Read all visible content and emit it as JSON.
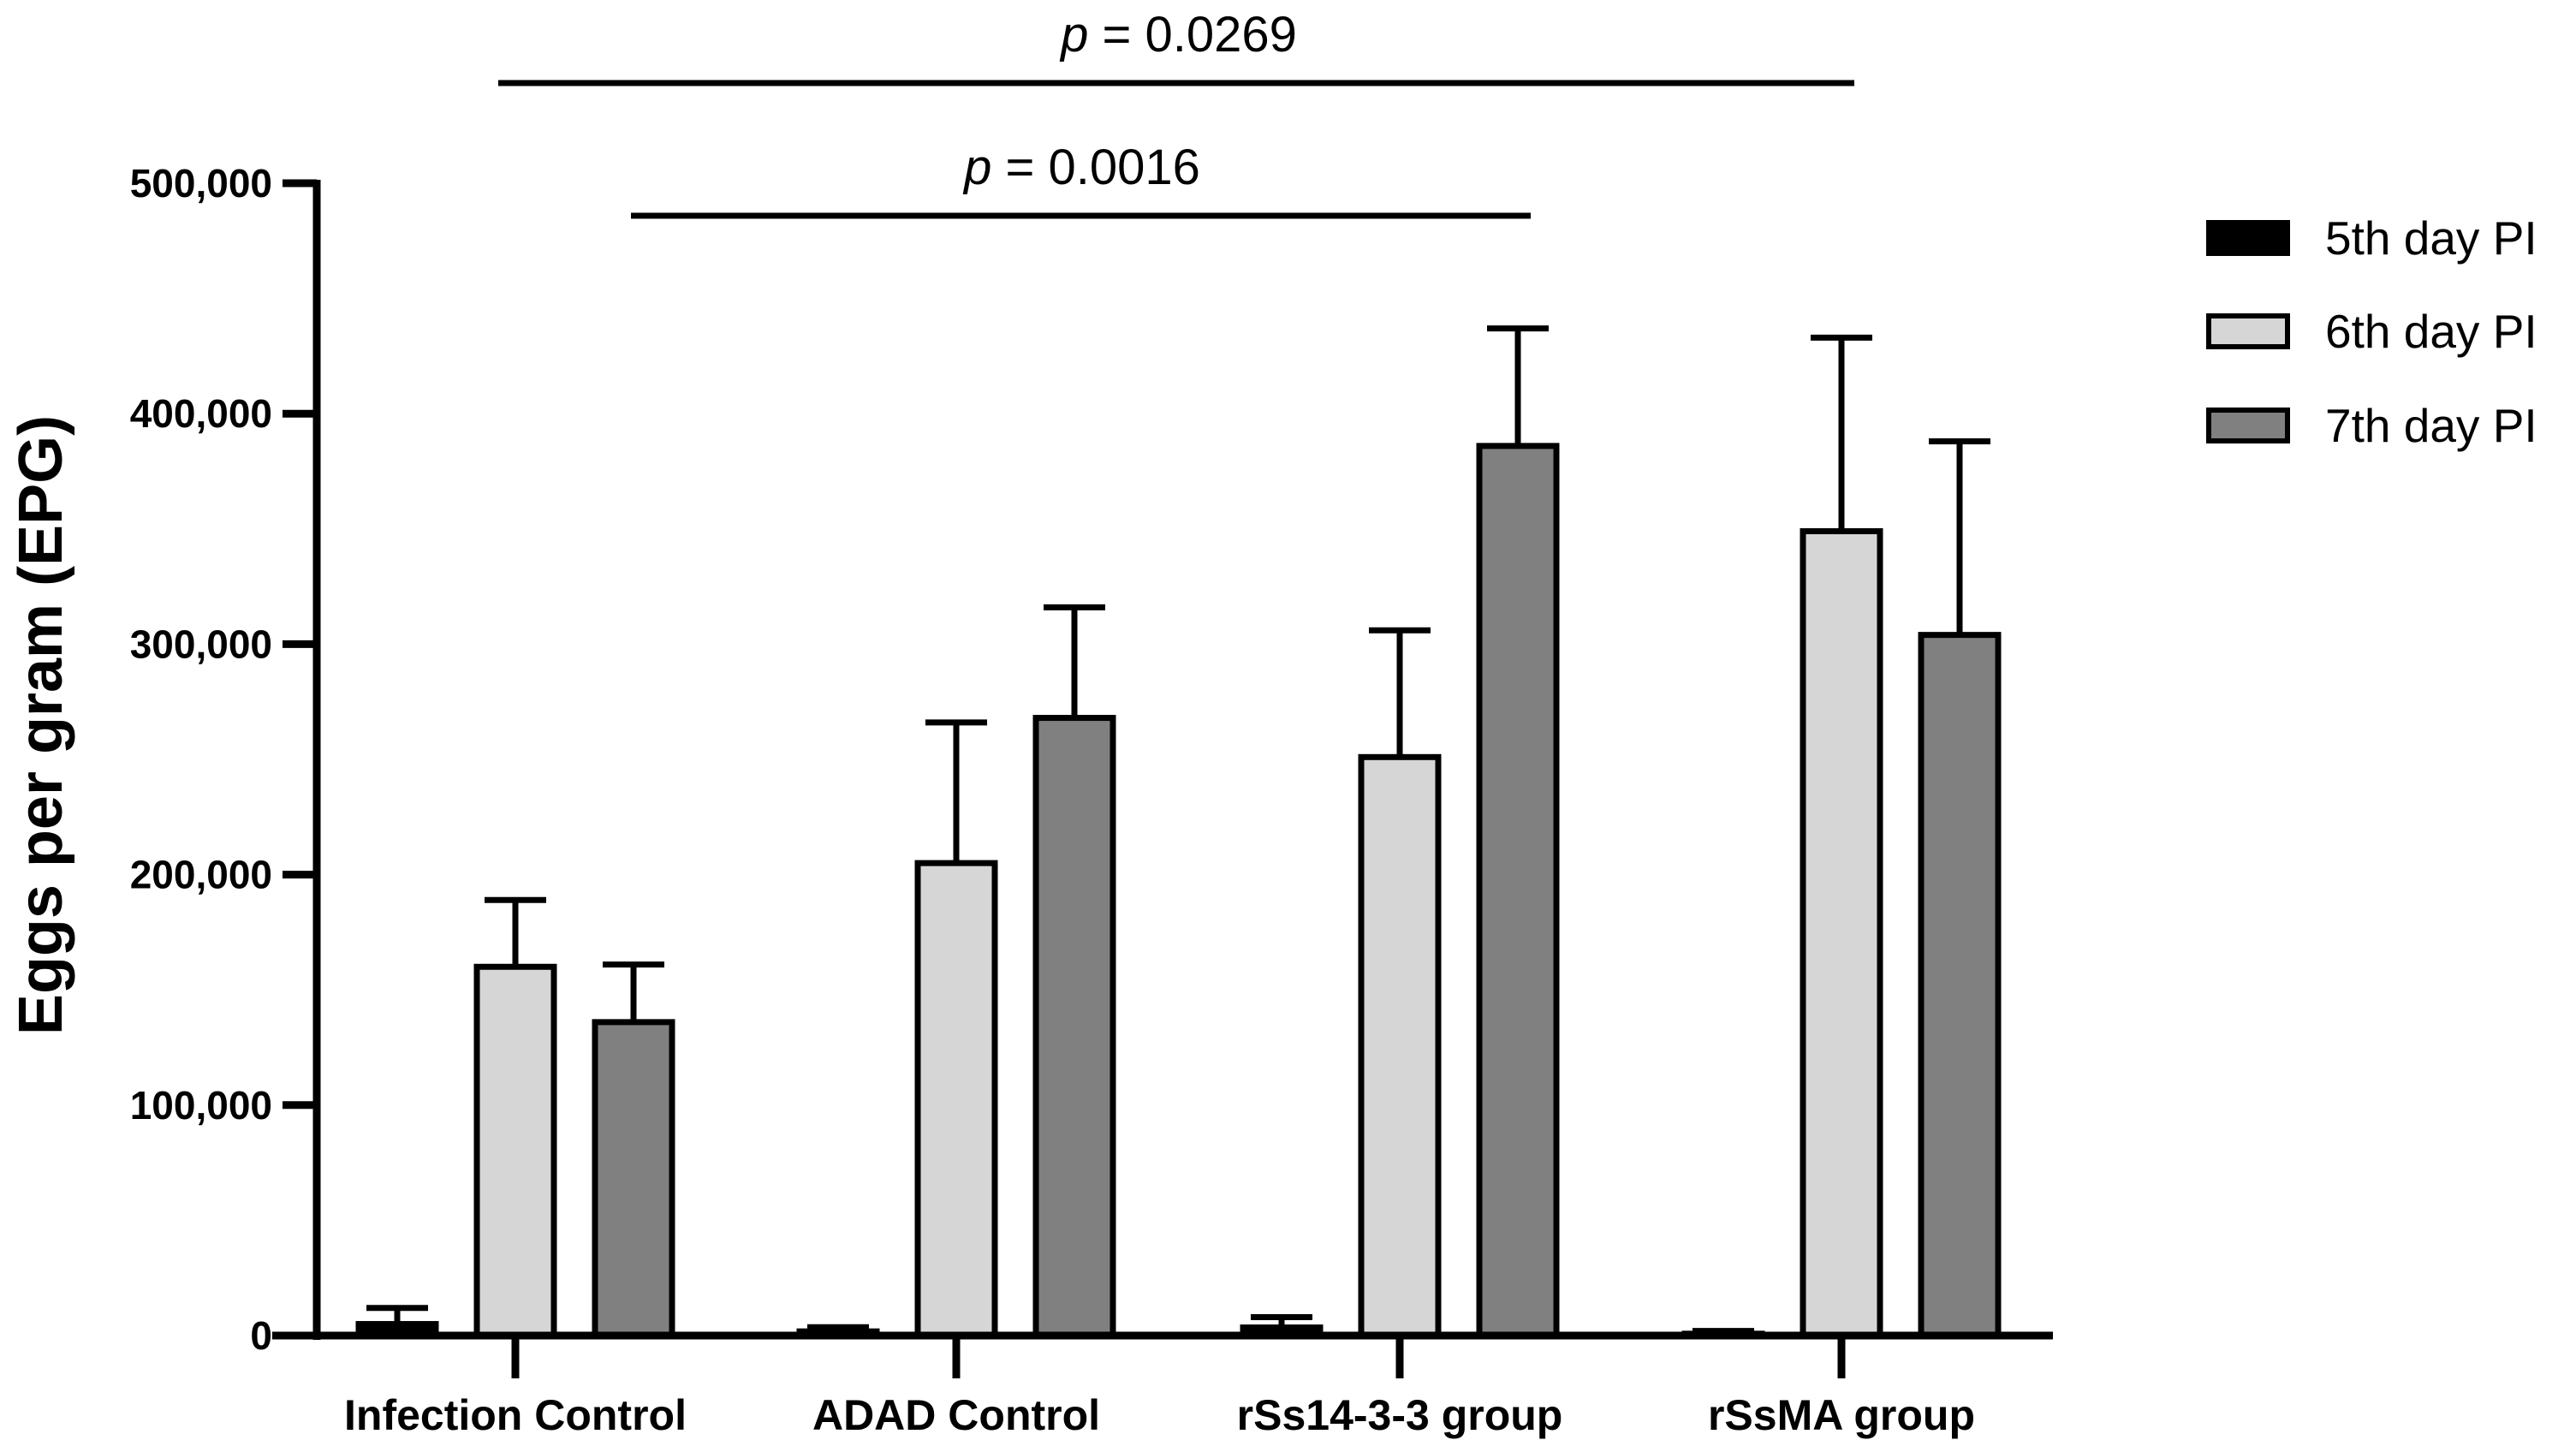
{
  "chart_data": {
    "type": "bar",
    "title": "",
    "xlabel": "",
    "ylabel": "Eggs per gram (EPG)",
    "ylim": [
      0,
      500000
    ],
    "yticks": [
      0,
      100000,
      200000,
      300000,
      400000,
      500000
    ],
    "ytick_labels": [
      "0",
      "100,000",
      "200,000",
      "300,000",
      "400,000",
      "500,000"
    ],
    "categories": [
      "Infection Control",
      "ADAD Control",
      "rSs14-3-3 group",
      "rSsMA group"
    ],
    "series": [
      {
        "name": "5th day PI",
        "color": "#000000",
        "values": [
          5000,
          1800,
          3500,
          800
        ],
        "errors": [
          7000,
          1800,
          4500,
          1200
        ]
      },
      {
        "name": "6th day PI",
        "color": "#d6d6d6",
        "values": [
          160000,
          205000,
          251000,
          349000
        ],
        "errors": [
          29000,
          61000,
          55000,
          84000
        ]
      },
      {
        "name": "7th day PI",
        "color": "#808080",
        "values": [
          136000,
          268000,
          386000,
          304000
        ],
        "errors": [
          25000,
          48000,
          51000,
          84000
        ]
      }
    ],
    "legend": "right",
    "annotations": [
      {
        "italic": "p",
        "text": " = 0.0269",
        "from_category": 0,
        "to_category": 3
      },
      {
        "italic": "p",
        "text": " = 0.0016",
        "from_category": 0,
        "to_category": 2
      }
    ]
  }
}
